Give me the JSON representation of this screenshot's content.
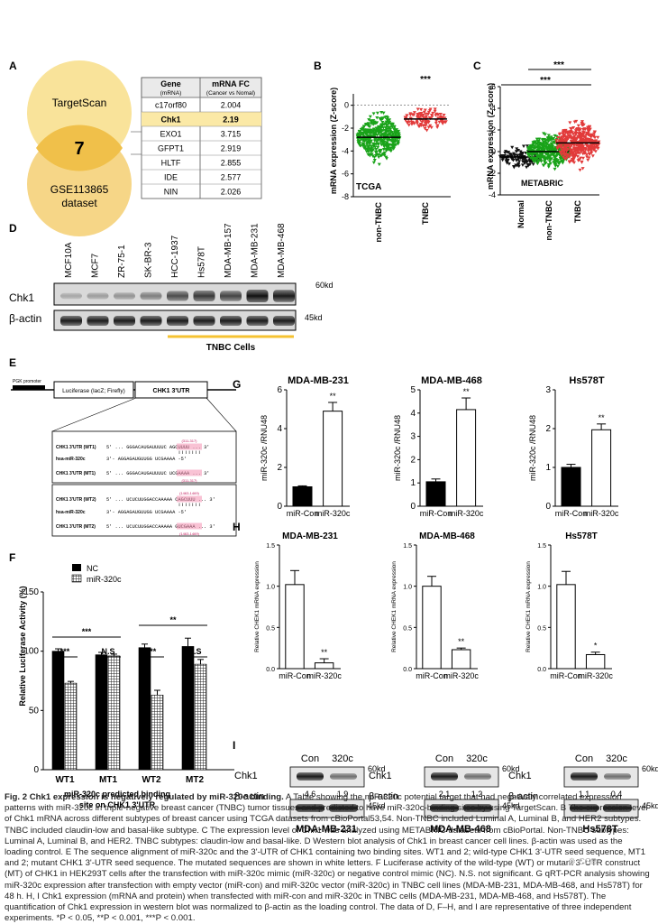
{
  "panels": {
    "A": {
      "letter": "A",
      "venn": {
        "top": "TargetScan",
        "center": "7",
        "bottom_line1": "GSE113865",
        "bottom_line2": "dataset"
      },
      "table": {
        "col1_header": "Gene",
        "col1_sub": "(mRNA)",
        "col2_header": "mRNA FC",
        "col2_sub": "(Cancer vs Nomal)",
        "rows": [
          {
            "gene": "c17orf80",
            "fc": "2.004"
          },
          {
            "gene": "Chk1",
            "fc": "2.19"
          },
          {
            "gene": "EXO1",
            "fc": "3.715"
          },
          {
            "gene": "GFPT1",
            "fc": "2.919"
          },
          {
            "gene": "HLTF",
            "fc": "2.855"
          },
          {
            "gene": "IDE",
            "fc": "2.577"
          },
          {
            "gene": "NIN",
            "fc": "2.026"
          }
        ]
      }
    },
    "B": {
      "letter": "B",
      "ylabel": "mRNA expression (Z-score)",
      "dataset": "TCGA",
      "sig": "***",
      "yticks": [
        "0",
        "-2",
        "-4",
        "-6",
        "-8"
      ],
      "cats": [
        "non-TNBC",
        "TNBC"
      ]
    },
    "C": {
      "letter": "C",
      "ylabel": "mRNA expression (Z-score)",
      "dataset": "METABRIC",
      "sig1": "***",
      "sig2": "***",
      "yticks": [
        "6",
        "4",
        "2",
        "0",
        "-2",
        "-4"
      ],
      "cats": [
        "Normal",
        "non-TNBC",
        "TNBC"
      ]
    },
    "D": {
      "letter": "D",
      "lanes": [
        "MCF10A",
        "MCF7",
        "ZR-75-1",
        "SK-BR-3",
        "HCC-1937",
        "Hs578T",
        "MDA-MB-157",
        "MDA-MB-231",
        "MDA-MB-468"
      ],
      "row1": "Chk1",
      "row2": "β-actin",
      "kd1": "60kd",
      "kd2": "45kd",
      "group": "TNBC Cells"
    },
    "E": {
      "letter": "E",
      "promoter": "PGK promoter",
      "luc": "Luciferase (lacZ; Firefly)",
      "utr": "CHK1 3'UTR",
      "seq": [
        {
          "label": "CHK1 3'UTR (WT1)",
          "pos": "(311-317)",
          "seq": "5' ... GGGACAUGAUUUUC AGCUUUU ... 3'"
        },
        {
          "label": "hsa-miR-320c",
          "pos": "",
          "seq": "3'- AGGAGAUGUUGG UCGAAAA -5'"
        },
        {
          "label": "CHK1 3'UTR (MT1)",
          "pos": "(311-317)",
          "seq": "5' ... GGGACAUGAUUUUC UCGAAAA ... 3'"
        },
        {
          "label": "CHK1 3'UTR (WT2)",
          "pos": "(1463-1469)",
          "seq": "5' ... UCUCUUGGACCAAAAA CAGCUUU ... 3'"
        },
        {
          "label": "hsa-miR-320c",
          "pos": "",
          "seq": "3'- AGGAGAUGUUGG UCGAAAA -5'"
        },
        {
          "label": "CHK1 3'UTR (MT2)",
          "pos": "(1463-1469)",
          "seq": "5' ... UCUCUUGGACCAAAAA GUCGAAA ... 3'"
        }
      ]
    },
    "F": {
      "letter": "F",
      "ylabel": "Relative Luciferase Activity (%)",
      "legend": [
        "NC",
        "miR-320c"
      ],
      "xlabel1": "miR-320c predicted binding",
      "xlabel2": "site on CHK1 3'UTR",
      "groups": [
        "WT1",
        "MT1",
        "WT2",
        "MT2"
      ],
      "yticks": [
        "0",
        "50",
        "100",
        "150"
      ],
      "sig": [
        "***",
        "N.S",
        "***",
        "N.S",
        "***",
        "**"
      ]
    },
    "G": {
      "letter": "G",
      "ylabel": "miR-320c /RNU48",
      "cats": [
        "miR-Con",
        "miR-320c"
      ]
    },
    "H": {
      "letter": "H",
      "ylabel1": "Relative CHEK1 mRNA expression",
      "cats": [
        "miR-Con",
        "miR-320c"
      ]
    },
    "I": {
      "letter": "I",
      "col1": "Con",
      "col2": "320c",
      "row1": "Chk1",
      "row2": "β-actin",
      "kd1": "60kd",
      "kd2": "45kd",
      "blots": [
        {
          "cell": "MDA-MB-231",
          "q1": "4.6",
          "q2": "1.9"
        },
        {
          "cell": "MDA-MB-468",
          "q1": "2.1",
          "q2": "1.2"
        },
        {
          "cell": "Hs578T",
          "q1": "1.1",
          "q2": "0.4"
        }
      ]
    }
  },
  "chart_data": [
    {
      "type": "scatter",
      "panel": "B",
      "title": "",
      "ylabel": "mRNA expression (Z-score)",
      "categories": [
        "non-TNBC",
        "TNBC"
      ],
      "medians": [
        -2.8,
        -1.2
      ],
      "ylim": [
        -8,
        1
      ],
      "annotation": "TCGA"
    },
    {
      "type": "scatter",
      "panel": "C",
      "title": "",
      "ylabel": "mRNA expression (Z-score)",
      "categories": [
        "Normal",
        "non-TNBC",
        "TNBC"
      ],
      "medians": [
        -0.5,
        0.0,
        0.8
      ],
      "ylim": [
        -4,
        6
      ],
      "annotation": "METABRIC"
    },
    {
      "type": "bar",
      "panel": "F",
      "ylabel": "Relative Luciferase Activity (%)",
      "categories": [
        "WT1",
        "MT1",
        "WT2",
        "MT2"
      ],
      "series": [
        {
          "name": "NC",
          "values": [
            100,
            97,
            103,
            104
          ]
        },
        {
          "name": "miR-320c",
          "values": [
            73,
            96,
            63,
            89
          ]
        }
      ],
      "ylim": [
        0,
        150
      ]
    },
    {
      "type": "bar",
      "panel": "G",
      "title": "MDA-MB-231",
      "ylabel": "miR-320c /RNU48",
      "categories": [
        "miR-Con",
        "miR-320c"
      ],
      "values": [
        1.0,
        4.9
      ],
      "errors": [
        0.05,
        0.45
      ],
      "yticks": [
        0,
        2,
        4,
        6
      ],
      "ylim": [
        0,
        6
      ],
      "sig": "**"
    },
    {
      "type": "bar",
      "panel": "G",
      "title": "MDA-MB-468",
      "ylabel": "miR-320c /RNU48",
      "categories": [
        "miR-Con",
        "miR-320c"
      ],
      "values": [
        1.05,
        4.15
      ],
      "errors": [
        0.12,
        0.5
      ],
      "yticks": [
        0,
        1,
        2,
        3,
        4,
        5
      ],
      "ylim": [
        0,
        5
      ],
      "sig": "**"
    },
    {
      "type": "bar",
      "panel": "G",
      "title": "Hs578T",
      "ylabel": "miR-320c /RNU48",
      "categories": [
        "miR-Con",
        "miR-320c"
      ],
      "values": [
        1.0,
        1.97
      ],
      "errors": [
        0.08,
        0.15
      ],
      "yticks": [
        0,
        1,
        2,
        3
      ],
      "ylim": [
        0,
        3
      ],
      "sig": "**"
    },
    {
      "type": "bar",
      "panel": "H",
      "title": "MDA-MB-231",
      "ylabel": "Relative CHEK1 mRNA expression",
      "categories": [
        "miR-Con",
        "miR-320c"
      ],
      "values": [
        1.02,
        0.07
      ],
      "errors": [
        0.17,
        0.05
      ],
      "yticks": [
        "0.0",
        "0.5",
        "1.0",
        "1.5"
      ],
      "ylim": [
        0,
        1.5
      ],
      "sig": "**"
    },
    {
      "type": "bar",
      "panel": "H",
      "title": "MDA-MB-468",
      "ylabel": "Relative CHEK1 mRNA expression",
      "categories": [
        "miR-Con",
        "miR-320c"
      ],
      "values": [
        1.0,
        0.23
      ],
      "errors": [
        0.12,
        0.02
      ],
      "yticks": [
        "0.0",
        "0.5",
        "1.0",
        "1.5"
      ],
      "ylim": [
        0,
        1.5
      ],
      "sig": "**"
    },
    {
      "type": "bar",
      "panel": "H",
      "title": "Hs578T",
      "ylabel": "Relative CHEK1 mRNA expression",
      "categories": [
        "miR-Con",
        "miR-320c"
      ],
      "values": [
        1.02,
        0.17
      ],
      "errors": [
        0.16,
        0.03
      ],
      "yticks": [
        "0.0",
        "0.5",
        "1.0",
        "1.5"
      ],
      "ylim": [
        0,
        1.5
      ],
      "sig": "*"
    }
  ],
  "caption": {
    "title": "Fig. 2 Chk1 expression is negatively regulated by miR-320c binding.",
    "body": " A Table showing the miR-320c potential target that had negatively correlated expression patterns with miR-320c in triple-negative breast cancer (TNBC) tumor tissues and predicted to have miR-320c-binding sites by using TargetScan. B The expression level of Chk1 mRNA across different subtypes of breast cancer using TCGA datasets from cBioPortal53,54. Non-TNBC included Luminal A, Luminal B, and HER2 subtypes. TNBC included claudin-low and basal-like subtype. C The expression level of Chk1 was analyzed using METABRIC datasets from cBioPortal. Non-TNBC subtypes: Luminal A, Luminal B, and HER2. TNBC subtypes: claudin-low and basal-like. D Western blot analysis of Chk1 in breast cancer cell lines. β-actin was used as the loading control. E The sequence alignment of miR-320c and the 3'-UTR of CHK1 containing two binding sites. WT1 and 2; wild-type CHK1 3'-UTR seed sequence, MT1 and 2; mutant CHK1 3'-UTR seed sequence. The mutated sequences are shown in white letters. F Luciferase activity of the wild-type (WT) or mutant 3'-UTR construct (MT) of CHK1 in HEK293T cells after the transfection with miR-320c mimic (miR-320c) or negative control mimic (NC). N.S. not significant. G qRT-PCR analysis showing miR-320c expression after transfection with empty vector (miR-con) and miR-320c vector (miR-320c) in TNBC cell lines (MDA-MB-231, MDA-MB-468, and Hs578T) for 48 h. H, I Chk1 expression (mRNA and protein) when transfected with miR-con and miR-320c in TNBC cells (MDA-MB-231, MDA-MB-468, and Hs578T). The quantification of Chk1 expression in western blot was normalized to β-actin as the loading control. The data of D, F–H, and I are representative of three independent experiments. *P < 0.05, **P < 0.001, ***P < 0.001."
  }
}
